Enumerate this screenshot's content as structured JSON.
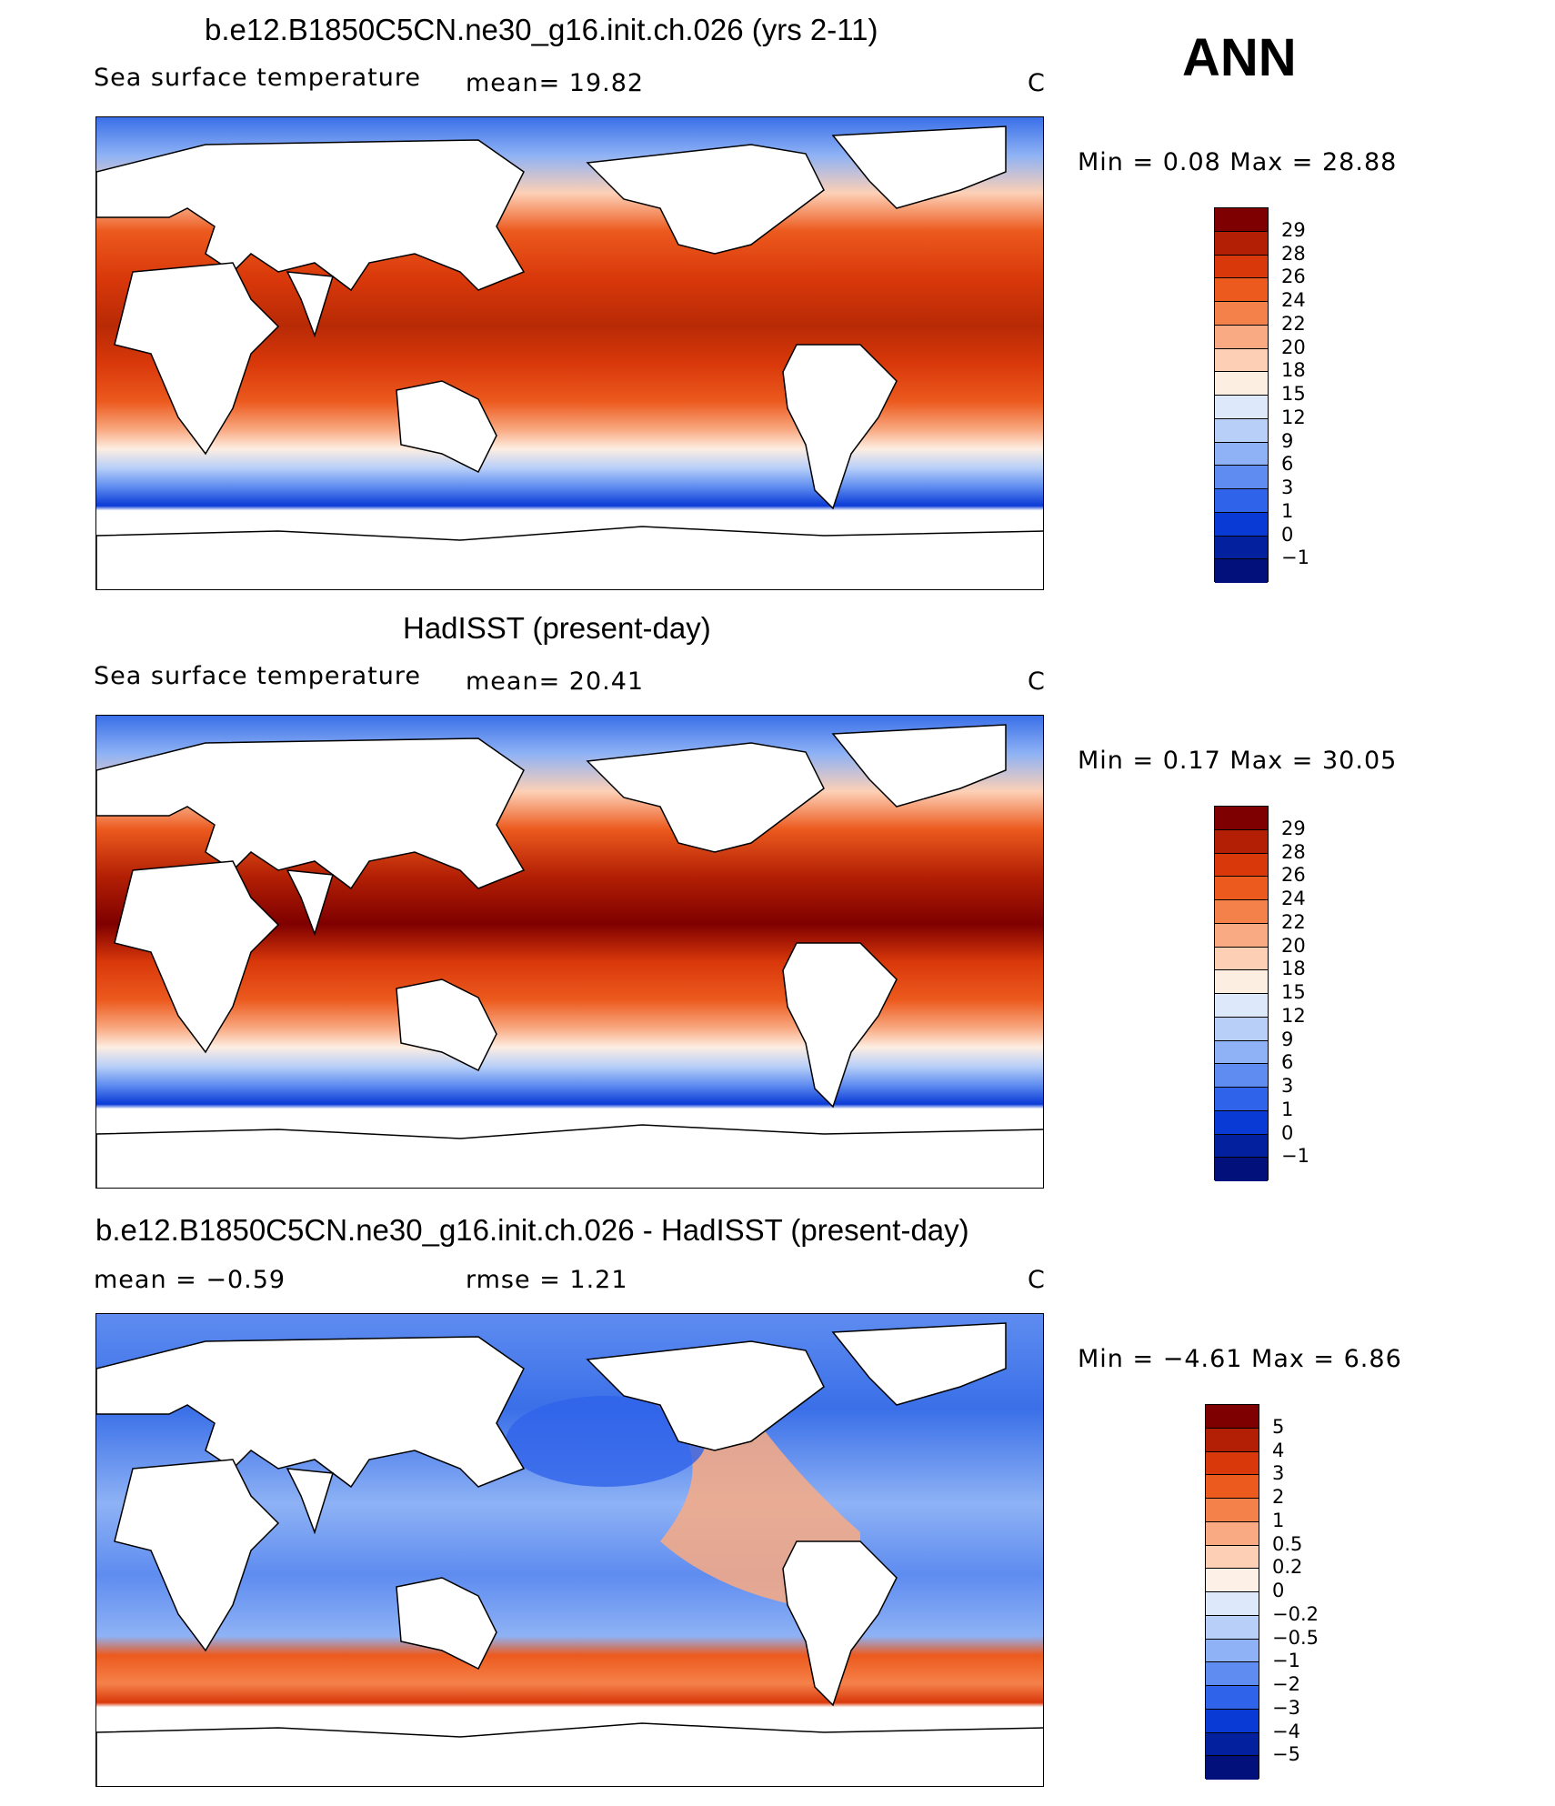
{
  "season": "ANN",
  "panels": [
    {
      "title": "b.e12.B1850C5CN.ne30_g16.init.ch.026 (yrs 2-11)",
      "left_text": "Sea surface temperature",
      "mid_text": "mean=   19.82",
      "unit": "C",
      "minmax": "Min =    0.08  Max =   28.88",
      "colorbar_labels": [
        "29",
        "28",
        "26",
        "24",
        "22",
        "20",
        "18",
        "15",
        "12",
        "9",
        "6",
        "3",
        "1",
        "0",
        "−1"
      ]
    },
    {
      "title": "HadISST (present-day)",
      "left_text": "Sea surface temperature",
      "mid_text": "mean=   20.41",
      "unit": "C",
      "minmax": "Min =    0.17  Max =   30.05",
      "colorbar_labels": [
        "29",
        "28",
        "26",
        "24",
        "22",
        "20",
        "18",
        "15",
        "12",
        "9",
        "6",
        "3",
        "1",
        "0",
        "−1"
      ]
    },
    {
      "title": "b.e12.B1850C5CN.ne30_g16.init.ch.026 - HadISST (present-day)",
      "left_text": "mean =   −0.59",
      "mid_text": "rmse =    1.21",
      "unit": "C",
      "minmax": "Min =  −4.61  Max =    6.86",
      "colorbar_labels": [
        "5",
        "4",
        "3",
        "2",
        "1",
        "0.5",
        "0.2",
        "0",
        "−0.2",
        "−0.5",
        "−1",
        "−2",
        "−3",
        "−4",
        "−5"
      ]
    }
  ],
  "colors": {
    "sst_scale": [
      "#7f0000",
      "#b21f04",
      "#d9380a",
      "#ec5a1e",
      "#f5814a",
      "#f9aa82",
      "#fdd0b6",
      "#fdeee2",
      "#dde9fb",
      "#b8cff8",
      "#8eb2f5",
      "#5e8cf0",
      "#2f63ea",
      "#0a3ad6",
      "#03219e",
      "#01107a"
    ],
    "diff_scale": [
      "#7f0000",
      "#b21f04",
      "#d9380a",
      "#ec5a1e",
      "#f5814a",
      "#f9aa82",
      "#fdd0b6",
      "#fdf0e6",
      "#dde9fb",
      "#b8cff8",
      "#8eb2f5",
      "#5e8cf0",
      "#2f63ea",
      "#0a3ad6",
      "#03219e",
      "#01107a"
    ]
  }
}
